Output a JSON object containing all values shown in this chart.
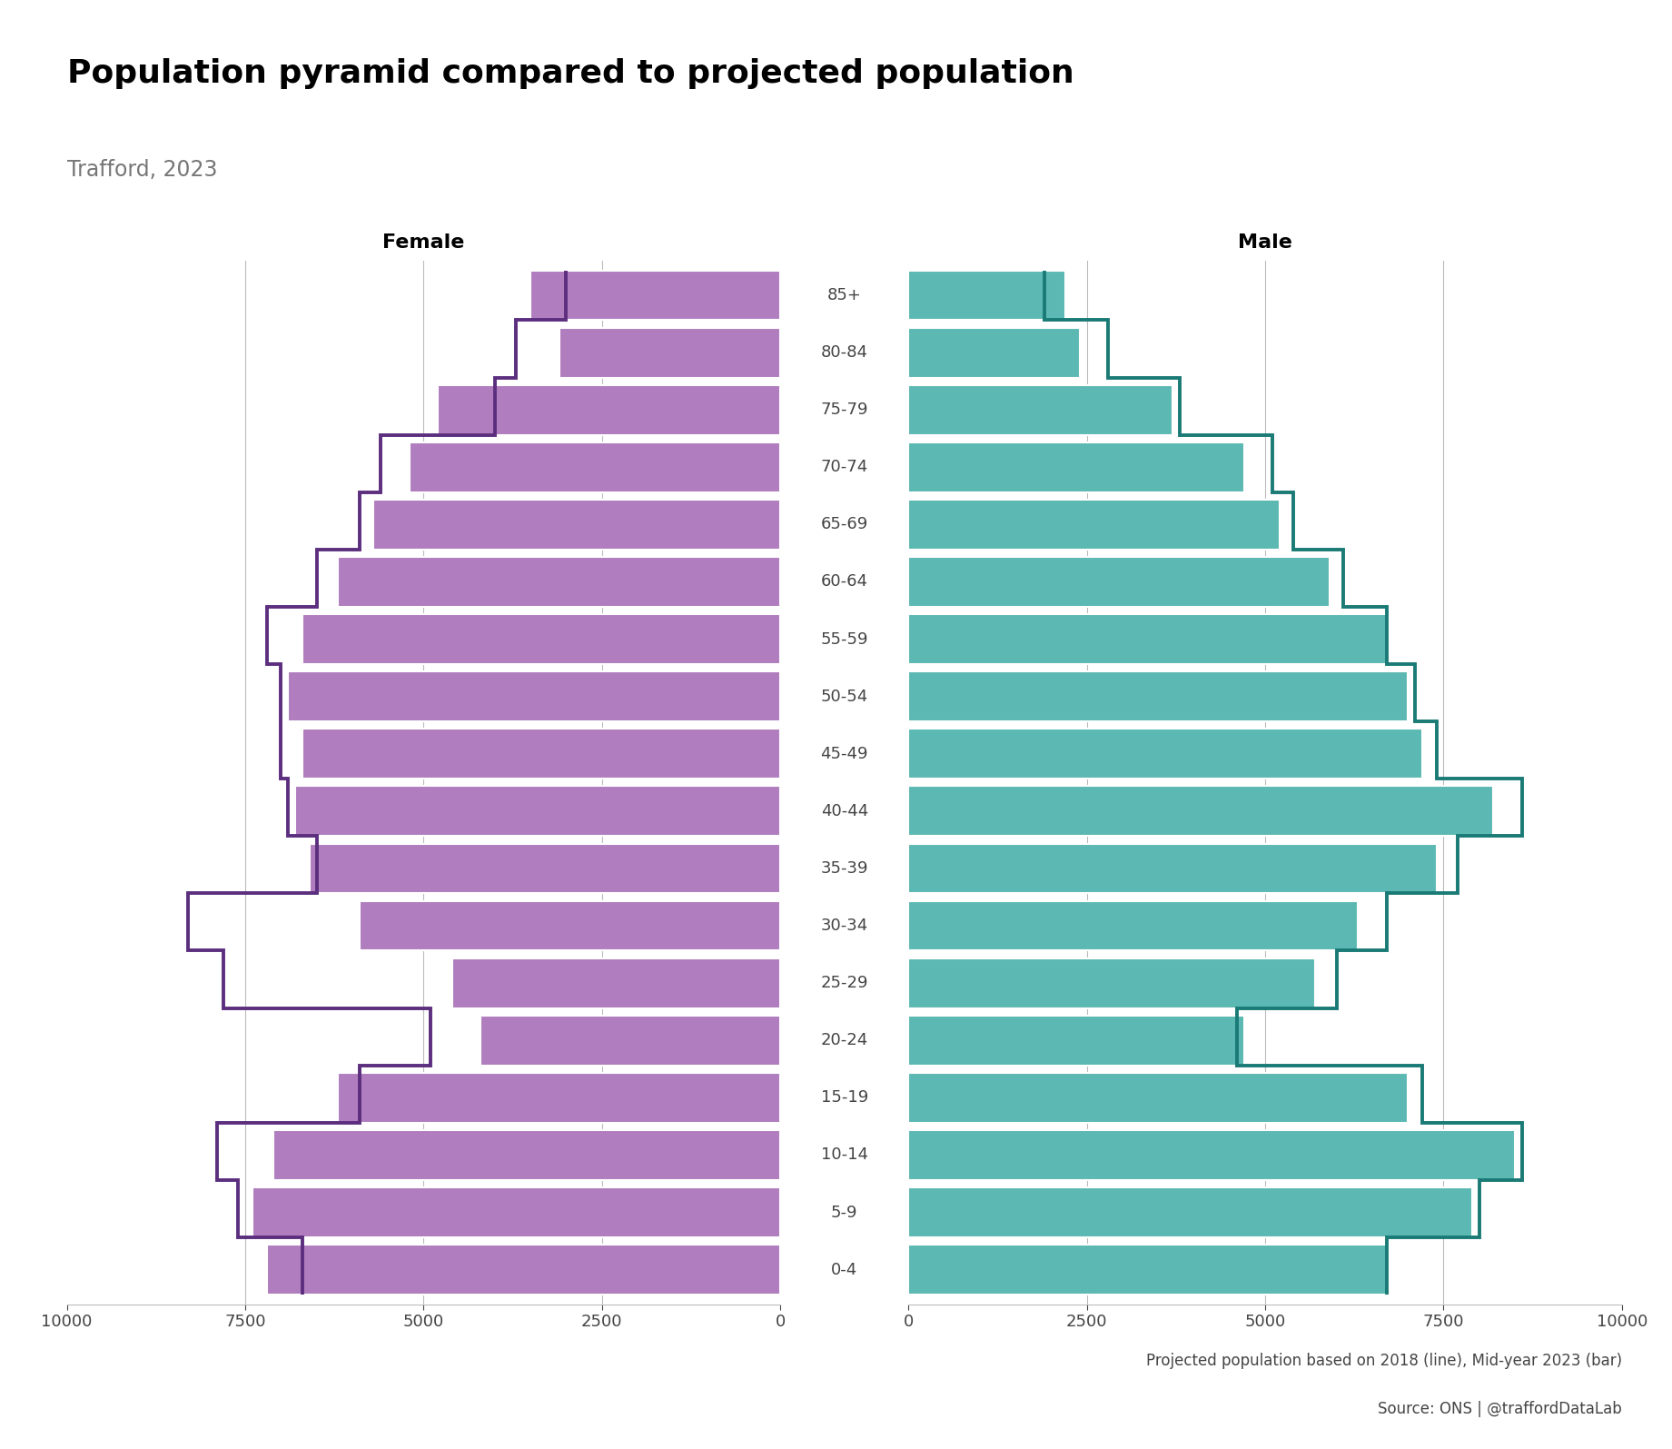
{
  "title": "Population pyramid compared to projected population",
  "subtitle": "Trafford, 2023",
  "age_groups": [
    "0-4",
    "5-9",
    "10-14",
    "15-19",
    "20-24",
    "25-29",
    "30-34",
    "35-39",
    "40-44",
    "45-49",
    "50-54",
    "55-59",
    "60-64",
    "65-69",
    "70-74",
    "75-79",
    "80-84",
    "85+"
  ],
  "female_bars": [
    7200,
    7400,
    7100,
    6200,
    4200,
    4600,
    5900,
    6600,
    6800,
    6700,
    6900,
    6700,
    6200,
    5700,
    5200,
    4800,
    3100,
    3500
  ],
  "male_bars": [
    6700,
    7900,
    8500,
    7000,
    4700,
    5700,
    6300,
    7400,
    8200,
    7200,
    7000,
    6700,
    5900,
    5200,
    4700,
    3700,
    2400,
    2200
  ],
  "female_proj": [
    6700,
    7600,
    7900,
    5900,
    4900,
    7800,
    8300,
    6500,
    6900,
    7000,
    7000,
    7200,
    6500,
    5900,
    5600,
    4000,
    3700,
    3000
  ],
  "male_proj": [
    6700,
    8000,
    8600,
    7200,
    4600,
    6000,
    6700,
    7700,
    8600,
    7400,
    7100,
    6700,
    6100,
    5400,
    5100,
    3800,
    2800,
    1900
  ],
  "bar_color_female": "#b07dbe",
  "bar_color_male": "#5cb8b2",
  "line_color_female": "#5c2e7e",
  "line_color_male": "#1a7a75",
  "xlim": 10000,
  "background_color": "#ffffff",
  "grid_color": "#bbbbbb",
  "caption1": "Projected population based on 2018 (line), Mid-year 2023 (bar)",
  "caption2": "Source: ONS | @traffordDataLab",
  "title_fontsize": 26,
  "subtitle_fontsize": 17,
  "axis_fontsize": 13,
  "age_label_fontsize": 13
}
